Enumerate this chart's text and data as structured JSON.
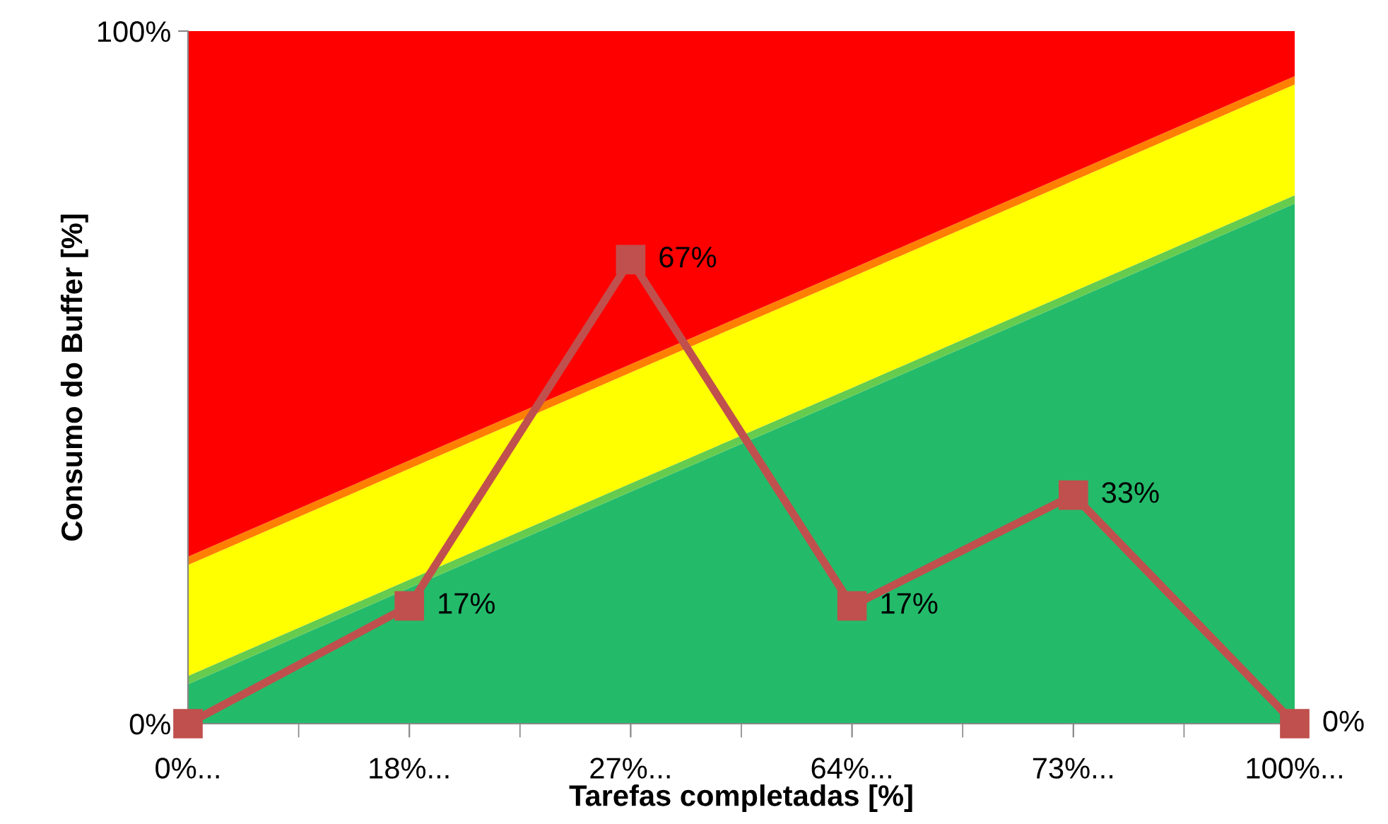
{
  "chart_data": {
    "type": "area",
    "stacked": true,
    "xlabel": "Tarefas completadas [%]",
    "ylabel": "Consumo do Buffer [%]",
    "categories": [
      "0%...",
      "18%...",
      "27%...",
      "64%...",
      "73%...",
      "100%..."
    ],
    "ylim": [
      0,
      100
    ],
    "yticks": [
      {
        "value": 0,
        "label": "0%"
      },
      {
        "value": 100,
        "label": "100%"
      }
    ],
    "grid": false,
    "legend": false,
    "series": [
      {
        "color": "#23bb6a",
        "values": [
          5.7,
          19.6,
          33.5,
          47.3,
          61.2,
          75.1
        ]
      },
      {
        "color": "#66cc4f",
        "values": [
          1.2,
          1.2,
          1.2,
          1.2,
          1.2,
          1.2
        ]
      },
      {
        "color": "#ffff00",
        "values": [
          16,
          16,
          16,
          16,
          16,
          16
        ]
      },
      {
        "color": "#ff8000",
        "values": [
          1.2,
          1.2,
          1.2,
          1.2,
          1.2,
          1.2
        ]
      },
      {
        "color": "#ff0000",
        "values": [
          75.9,
          62,
          48.1,
          34.3,
          20.4,
          6.5
        ]
      },
      {
        "type": "line",
        "color": "#c0504d",
        "marker": "square",
        "values": [
          0,
          17,
          67,
          17,
          33,
          0
        ],
        "value_labels": [
          null,
          "17%",
          "67%",
          "17%",
          "33%",
          "0%"
        ]
      }
    ]
  }
}
